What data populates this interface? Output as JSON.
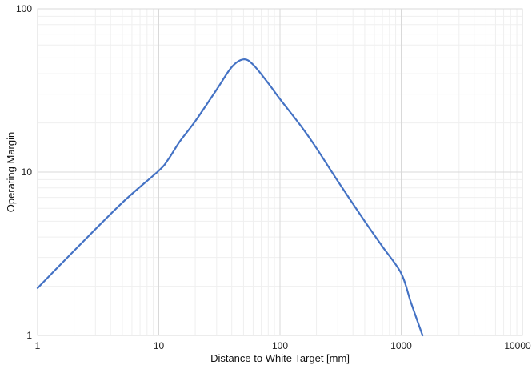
{
  "chart_data": {
    "type": "line",
    "title": "",
    "xlabel": "Distance to White Target [mm]",
    "ylabel": "Operating Margin",
    "x_scale": "log",
    "y_scale": "log",
    "xlim": [
      1,
      10000
    ],
    "ylim": [
      1,
      100
    ],
    "grid": true,
    "x_ticks": [
      {
        "value": 1,
        "label": "1"
      },
      {
        "value": 10,
        "label": "10"
      },
      {
        "value": 100,
        "label": "100"
      },
      {
        "value": 1000,
        "label": "1000"
      },
      {
        "value": 10000,
        "label": "10000"
      }
    ],
    "y_ticks": [
      {
        "value": 1,
        "label": "1"
      },
      {
        "value": 10,
        "label": "10"
      },
      {
        "value": 100,
        "label": "100"
      }
    ],
    "series": [
      {
        "color": "#4472C4",
        "x": [
          1,
          2,
          5,
          10,
          12,
          15,
          20,
          30,
          40,
          50,
          60,
          80,
          100,
          150,
          200,
          300,
          500,
          700,
          1000,
          1200,
          1500
        ],
        "y": [
          1.95,
          3.3,
          6.5,
          10.2,
          12,
          15.5,
          20.5,
          32,
          44,
          49,
          45.5,
          35,
          28,
          19,
          14,
          8.8,
          5,
          3.5,
          2.4,
          1.6,
          1.0
        ]
      }
    ]
  }
}
